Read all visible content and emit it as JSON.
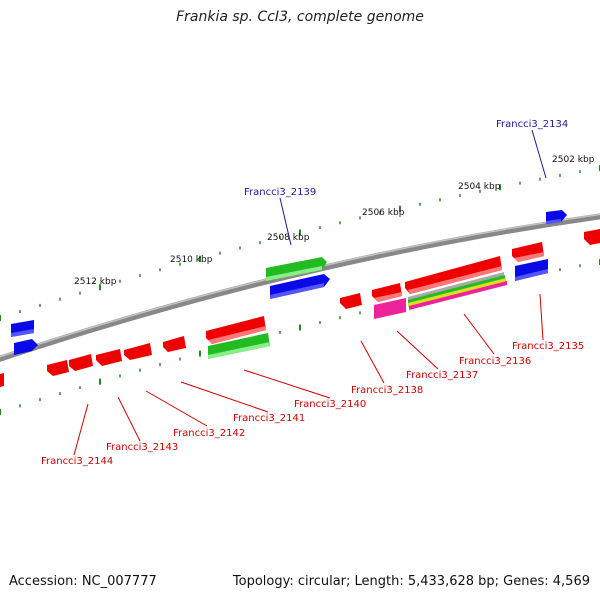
{
  "title": "Frankia sp. CcI3, complete genome",
  "footer": {
    "accession": "Accession: NC_007777",
    "summary": "Topology: circular; Length: 5,433,628 bp; Genes: 4,569"
  },
  "scale_labels": [
    "2502 kbp",
    "2504 kbp",
    "2506 kbp",
    "2508 kbp",
    "2510 kbp",
    "2512 kbp"
  ],
  "gene_labels": [
    {
      "text": "Francci3_2134",
      "color": "#1a1aa0"
    },
    {
      "text": "Francci3_2139",
      "color": "#1a1aa0"
    },
    {
      "text": "Francci3_2135",
      "color": "#cc0000"
    },
    {
      "text": "Francci3_2136",
      "color": "#cc0000"
    },
    {
      "text": "Francci3_2137",
      "color": "#cc0000"
    },
    {
      "text": "Francci3_2138",
      "color": "#cc0000"
    },
    {
      "text": "Francci3_2140",
      "color": "#cc0000"
    },
    {
      "text": "Francci3_2141",
      "color": "#cc0000"
    },
    {
      "text": "Francci3_2142",
      "color": "#cc0000"
    },
    {
      "text": "Francci3_2143",
      "color": "#cc0000"
    },
    {
      "text": "Francci3_2144",
      "color": "#cc0000"
    }
  ],
  "colors": {
    "forward_blue": "#0a0ae6",
    "forward_green": "#22bb22",
    "reverse_red": "#ee0000",
    "pink": "#ee2299",
    "backbone": "#888888",
    "tick": "#228822"
  }
}
